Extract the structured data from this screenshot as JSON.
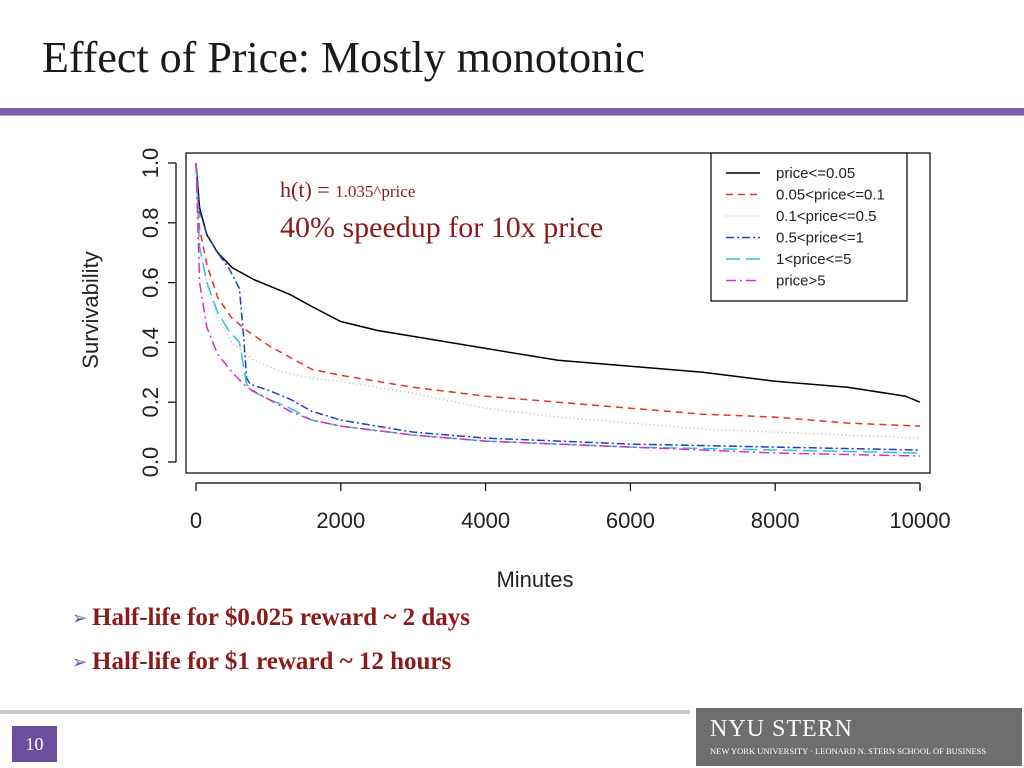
{
  "slide": {
    "title": "Effect of Price: Mostly monotonic",
    "page_number": "10",
    "logo_main": "NYU STERN",
    "logo_sub": "NEW YORK UNIVERSITY · LEONARD N. STERN SCHOOL OF BUSINESS",
    "accent_color": "#7e5fae",
    "bullets": [
      "Half-life for $0.025 reward ~ 2 days",
      "Half-life for $1 reward ~ 12 hours"
    ]
  },
  "chart_data": {
    "type": "line",
    "xlabel": "Minutes",
    "ylabel": "Survivability",
    "xlim": [
      0,
      10000
    ],
    "ylim": [
      0,
      1
    ],
    "x_ticks": [
      "0",
      "2000",
      "4000",
      "6000",
      "8000",
      "10000"
    ],
    "y_ticks": [
      "0.0",
      "0.2",
      "0.4",
      "0.6",
      "0.8",
      "1.0"
    ],
    "legend_position": "top-right",
    "annotations": {
      "formula_prefix": "h(t) = ",
      "formula_value": "1.035^price",
      "speedup": "40% speedup for 10x price"
    },
    "series": [
      {
        "name": "price<=0.05",
        "color": "#000000",
        "dash": "",
        "x": [
          0,
          50,
          150,
          300,
          500,
          800,
          1000,
          1300,
          1600,
          2000,
          2500,
          3000,
          3500,
          4000,
          5000,
          6000,
          7000,
          8000,
          9000,
          9800,
          10000
        ],
        "values": [
          1.0,
          0.85,
          0.76,
          0.7,
          0.65,
          0.61,
          0.59,
          0.56,
          0.52,
          0.47,
          0.44,
          0.42,
          0.4,
          0.38,
          0.34,
          0.32,
          0.3,
          0.27,
          0.25,
          0.22,
          0.2
        ]
      },
      {
        "name": "0.05<price<=0.1",
        "color": "#e8302a",
        "dash": "7,5",
        "x": [
          0,
          50,
          150,
          300,
          500,
          700,
          1000,
          1300,
          1600,
          2000,
          2500,
          3000,
          4000,
          5000,
          6000,
          7000,
          8000,
          9000,
          10000
        ],
        "values": [
          1.0,
          0.78,
          0.66,
          0.55,
          0.48,
          0.44,
          0.39,
          0.35,
          0.31,
          0.29,
          0.27,
          0.25,
          0.22,
          0.2,
          0.18,
          0.16,
          0.15,
          0.13,
          0.12
        ]
      },
      {
        "name": "0.1<price<=0.5",
        "color": "#b8b8b8",
        "dash": "1,3",
        "x": [
          0,
          50,
          150,
          300,
          500,
          800,
          1200,
          1600,
          2000,
          2500,
          3000,
          4000,
          5000,
          6000,
          7000,
          8000,
          9000,
          10000
        ],
        "values": [
          1.0,
          0.72,
          0.6,
          0.48,
          0.4,
          0.34,
          0.3,
          0.28,
          0.27,
          0.25,
          0.23,
          0.18,
          0.15,
          0.13,
          0.11,
          0.1,
          0.09,
          0.08
        ]
      },
      {
        "name": "0.5<price<=1",
        "color": "#1f3fc4",
        "dash": "8,3,2,3",
        "x": [
          0,
          50,
          150,
          300,
          450,
          600,
          650,
          700,
          750,
          1000,
          1300,
          1600,
          2000,
          3000,
          4000,
          6000,
          8000,
          10000
        ],
        "values": [
          1.0,
          0.84,
          0.76,
          0.7,
          0.65,
          0.58,
          0.44,
          0.28,
          0.26,
          0.24,
          0.21,
          0.17,
          0.14,
          0.1,
          0.08,
          0.06,
          0.05,
          0.04
        ]
      },
      {
        "name": "1<price<=5",
        "color": "#28c4d8",
        "dash": "14,6",
        "x": [
          0,
          50,
          150,
          300,
          450,
          600,
          650,
          700,
          750,
          1000,
          1300,
          1600,
          2000,
          3000,
          4000,
          6000,
          8000,
          10000
        ],
        "values": [
          1.0,
          0.72,
          0.6,
          0.5,
          0.44,
          0.4,
          0.33,
          0.26,
          0.24,
          0.21,
          0.18,
          0.14,
          0.12,
          0.09,
          0.07,
          0.05,
          0.04,
          0.03
        ]
      },
      {
        "name": "price>5",
        "color": "#d92cc8",
        "dash": "10,4,2,4",
        "x": [
          0,
          50,
          150,
          300,
          500,
          700,
          1000,
          1300,
          1600,
          2000,
          3000,
          4000,
          6000,
          8000,
          10000
        ],
        "values": [
          1.0,
          0.6,
          0.45,
          0.36,
          0.3,
          0.25,
          0.21,
          0.17,
          0.14,
          0.12,
          0.09,
          0.07,
          0.05,
          0.03,
          0.02
        ]
      }
    ]
  }
}
